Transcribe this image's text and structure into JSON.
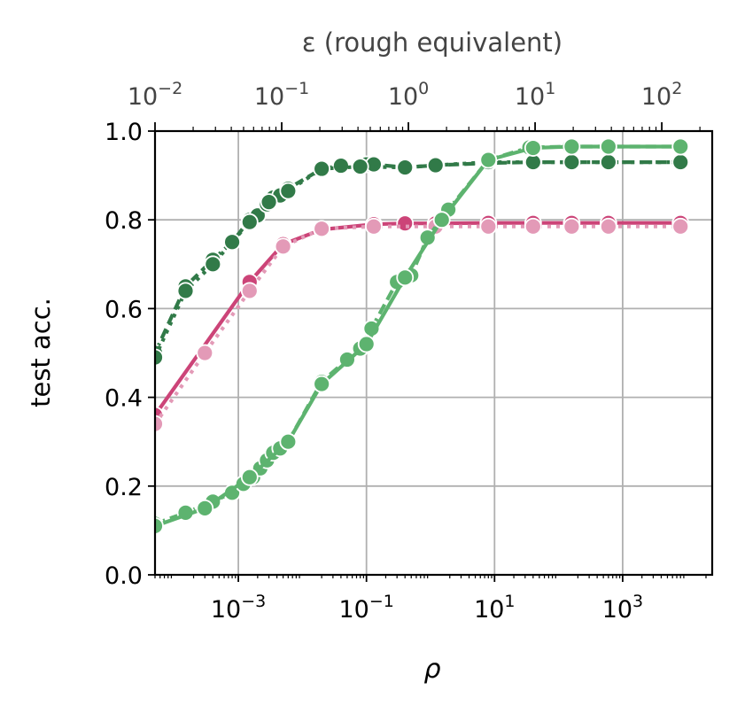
{
  "chart_data": {
    "type": "line",
    "xlabel": "ρ",
    "ylabel": "test acc.",
    "top_axis_label": "ε (rough equivalent)",
    "xscale": "log",
    "xlim": [
      5e-05,
      25000
    ],
    "ylim": [
      0.0,
      1.0
    ],
    "grid": true,
    "top_xlim": [
      0.01,
      250
    ],
    "x_ticks": [
      {
        "value": 0.001,
        "base": "10",
        "exp": "−3"
      },
      {
        "value": 0.1,
        "base": "10",
        "exp": "−1"
      },
      {
        "value": 10,
        "base": "10",
        "exp": "1"
      },
      {
        "value": 1000,
        "base": "10",
        "exp": "3"
      }
    ],
    "y_ticks": [
      "0.0",
      "0.2",
      "0.4",
      "0.6",
      "0.8",
      "1.0"
    ],
    "top_ticks": [
      {
        "value": 0.01,
        "base": "10",
        "exp": "−2"
      },
      {
        "value": 0.1,
        "base": "10",
        "exp": "−1"
      },
      {
        "value": 1,
        "base": "10",
        "exp": "0"
      },
      {
        "value": 10,
        "base": "10",
        "exp": "1"
      },
      {
        "value": 100,
        "base": "10",
        "exp": "2"
      }
    ],
    "series": [
      {
        "color": "#317a48",
        "linestyle": "dashed",
        "x": [
          5e-05,
          0.00015,
          0.0004,
          0.0008,
          0.0015,
          0.002,
          0.0028,
          0.0035,
          0.0045,
          0.006,
          0.02,
          0.04,
          0.08,
          0.1,
          0.13,
          0.4,
          1.2,
          8,
          40,
          160,
          600,
          8000
        ],
        "y": [
          0.5,
          0.65,
          0.71,
          0.75,
          0.8,
          0.81,
          0.835,
          0.85,
          0.855,
          0.87,
          0.915,
          0.922,
          0.922,
          0.925,
          0.925,
          0.918,
          0.923,
          0.928,
          0.93,
          0.93,
          0.93,
          0.93
        ]
      },
      {
        "color": "#317a48",
        "linestyle": "dotted",
        "x": [
          5e-05,
          0.00015,
          0.0004,
          0.0008,
          0.0015,
          0.003,
          0.006,
          0.02,
          0.08,
          0.4,
          1.2,
          8,
          40,
          160,
          600,
          8000
        ],
        "y": [
          0.49,
          0.64,
          0.7,
          0.75,
          0.795,
          0.84,
          0.865,
          0.915,
          0.92,
          0.918,
          0.923,
          0.93,
          0.93,
          0.93,
          0.93,
          0.93
        ]
      },
      {
        "color": "#cc4478",
        "linestyle": "solid",
        "x": [
          5e-05,
          0.0015,
          0.005,
          0.02,
          0.13,
          0.4,
          1.2,
          8,
          40,
          160,
          600,
          8000
        ],
        "y": [
          0.36,
          0.66,
          0.745,
          0.778,
          0.79,
          0.792,
          0.792,
          0.793,
          0.793,
          0.793,
          0.793,
          0.793
        ]
      },
      {
        "color": "#e39ab7",
        "linestyle": "dotted",
        "x": [
          5e-05,
          0.0003,
          0.0015,
          0.005,
          0.02,
          0.13,
          1.2,
          8,
          40,
          160,
          600,
          8000
        ],
        "y": [
          0.34,
          0.5,
          0.64,
          0.74,
          0.78,
          0.785,
          0.785,
          0.785,
          0.785,
          0.785,
          0.785,
          0.785
        ]
      },
      {
        "color": "#5db36f",
        "linestyle": "dashed",
        "x": [
          5e-05,
          0.00015,
          0.0004,
          0.0008,
          0.0012,
          0.0017,
          0.0022,
          0.0028,
          0.0035,
          0.0045,
          0.006,
          0.02,
          0.05,
          0.08,
          0.12,
          0.3,
          0.5,
          0.9,
          1.9,
          8,
          35,
          150,
          600,
          8000
        ],
        "y": [
          0.115,
          0.14,
          0.165,
          0.185,
          0.205,
          0.22,
          0.24,
          0.258,
          0.275,
          0.285,
          0.3,
          0.435,
          0.485,
          0.51,
          0.555,
          0.66,
          0.675,
          0.76,
          0.823,
          0.935,
          0.963,
          0.965,
          0.965,
          0.965
        ]
      },
      {
        "color": "#5db36f",
        "linestyle": "solid",
        "x": [
          5e-05,
          0.0003,
          0.0015,
          0.006,
          0.02,
          0.1,
          0.4,
          1.5,
          8,
          40,
          160,
          600,
          8000
        ],
        "y": [
          0.11,
          0.15,
          0.22,
          0.3,
          0.43,
          0.52,
          0.67,
          0.8,
          0.935,
          0.962,
          0.965,
          0.965,
          0.965
        ]
      }
    ]
  }
}
